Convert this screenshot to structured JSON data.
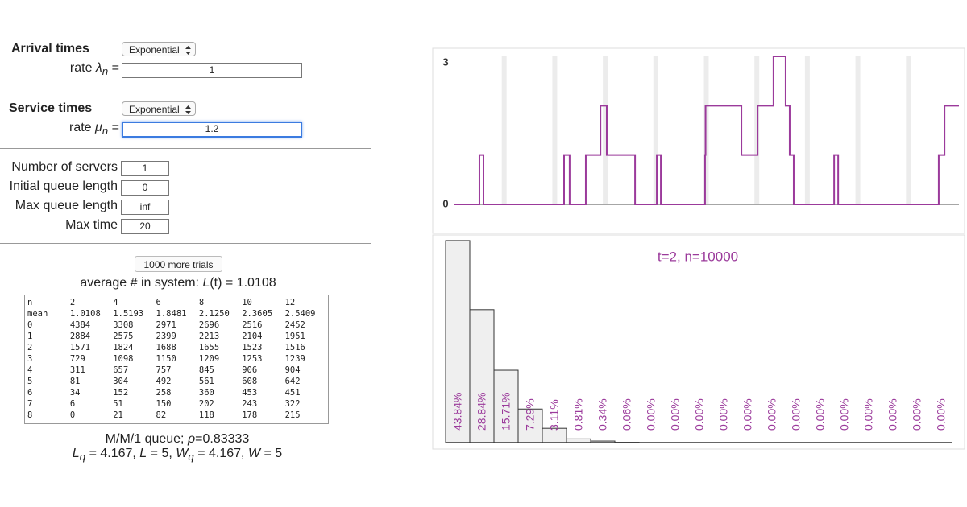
{
  "arrival": {
    "title": "Arrival times",
    "distribution": "Exponential",
    "rate_prefix": "rate ",
    "rate_symbol": "λ",
    "rate_subscript": "n",
    "rate_suffix": " =",
    "rate": "1"
  },
  "service": {
    "title": "Service times",
    "distribution": "Exponential",
    "rate_prefix": "rate ",
    "rate_symbol": "μ",
    "rate_subscript": "n",
    "rate_suffix": " =",
    "rate": "1.2"
  },
  "fields": [
    {
      "label": "Number of servers",
      "value": "1"
    },
    {
      "label": "Initial queue length",
      "value": "0"
    },
    {
      "label": "Max queue length",
      "value": "inf"
    },
    {
      "label": "Max time",
      "value": "20"
    }
  ],
  "button": "1000 more trials",
  "average": {
    "prefix": "average # in system: ",
    "symbol": "L",
    "suffix": "(t) = 1.0108"
  },
  "table": {
    "rows": [
      [
        "n",
        "2",
        "4",
        "6",
        "8",
        "10",
        "12"
      ],
      [
        "mean",
        "1.0108",
        "1.5193",
        "1.8481",
        "2.1250",
        "2.3605",
        "2.5409"
      ],
      [
        "0",
        "4384",
        "3308",
        "2971",
        "2696",
        "2516",
        "2452"
      ],
      [
        "1",
        "2884",
        "2575",
        "2399",
        "2213",
        "2104",
        "1951"
      ],
      [
        "2",
        "1571",
        "1824",
        "1688",
        "1655",
        "1523",
        "1516"
      ],
      [
        "3",
        "729",
        "1098",
        "1150",
        "1209",
        "1253",
        "1239"
      ],
      [
        "4",
        "311",
        "657",
        "757",
        "845",
        "906",
        "904"
      ],
      [
        "5",
        "81",
        "304",
        "492",
        "561",
        "608",
        "642"
      ],
      [
        "6",
        "34",
        "152",
        "258",
        "360",
        "453",
        "451"
      ],
      [
        "7",
        "6",
        "51",
        "150",
        "202",
        "243",
        "322"
      ],
      [
        "8",
        "0",
        "21",
        "82",
        "118",
        "178",
        "215"
      ]
    ]
  },
  "queue_summary": [
    "M/M/1 queue; ",
    "ρ",
    "=0.83333"
  ],
  "queue_metrics": [
    "L",
    "q",
    " = 4.167, ",
    "L",
    " = 5, ",
    "W",
    "q",
    " = 4.167, ",
    "W",
    " = 5"
  ],
  "chart_data": [
    {
      "type": "step",
      "color": "#9b3a9b",
      "xlim": [
        0,
        20
      ],
      "ylim": [
        0,
        3
      ],
      "yticks": [
        0,
        3
      ],
      "sample_times": [
        2,
        4,
        6,
        8,
        10,
        12,
        14,
        16,
        18
      ],
      "x": [
        0,
        1.02,
        1.18,
        4.37,
        4.59,
        5.23,
        5.81,
        6.06,
        7.18,
        8.04,
        8.2,
        9.95,
        9.97,
        11.39,
        12.03,
        12.66,
        13.14,
        13.3,
        13.46,
        15.06,
        15.22,
        19.2,
        19.43,
        20
      ],
      "values": [
        0,
        1,
        0,
        1,
        0,
        1,
        2,
        1,
        0,
        1,
        0,
        1,
        2,
        1,
        2,
        3,
        2,
        1,
        0,
        1,
        0,
        1,
        2,
        2
      ]
    },
    {
      "type": "histogram",
      "title": "t=2, n=10000",
      "color": "#efefef",
      "label_color": "#9b3a9b",
      "ylim": [
        0,
        44
      ],
      "values": [
        43.84,
        28.84,
        15.71,
        7.29,
        3.11,
        0.81,
        0.34,
        0.06,
        0,
        0,
        0,
        0,
        0,
        0,
        0,
        0,
        0,
        0,
        0,
        0,
        0
      ],
      "value_labels": [
        "43.84%",
        "28.84%",
        "15.71%",
        "7.29%",
        "3.11%",
        "0.81%",
        "0.34%",
        "0.06%",
        "0.00%",
        "0.00%",
        "0.00%",
        "0.00%",
        "0.00%",
        "0.00%",
        "0.00%",
        "0.00%",
        "0.00%",
        "0.00%",
        "0.00%",
        "0.00%",
        "0.00%"
      ]
    }
  ]
}
